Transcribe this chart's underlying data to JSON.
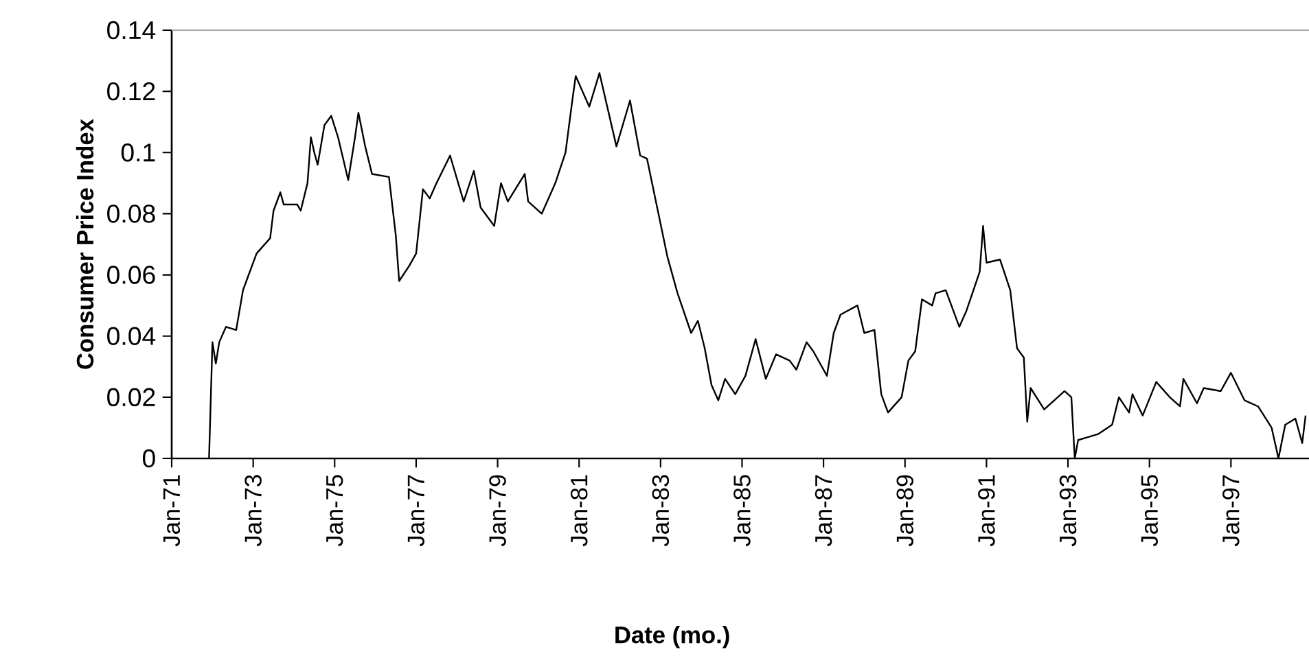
{
  "chart_data": {
    "type": "line",
    "xlabel": "Date (mo.)",
    "ylabel": "Consumer Price Index",
    "x": [
      "1971-12",
      "1972-01",
      "1972-02",
      "1972-03",
      "1972-05",
      "1972-08",
      "1972-10",
      "1972-11",
      "1973-02",
      "1973-06",
      "1973-07",
      "1973-09",
      "1973-10",
      "1974-02",
      "1974-03",
      "1974-05",
      "1974-06",
      "1974-07",
      "1974-08",
      "1974-10",
      "1974-12",
      "1975-02",
      "1975-05",
      "1975-07",
      "1975-08",
      "1975-10",
      "1975-12",
      "1976-05",
      "1976-07",
      "1976-08",
      "1976-11",
      "1977-01",
      "1977-03",
      "1977-05",
      "1977-07",
      "1977-11",
      "1978-03",
      "1978-06",
      "1978-08",
      "1978-12",
      "1979-02",
      "1979-04",
      "1979-09",
      "1979-10",
      "1980-02",
      "1980-06",
      "1980-09",
      "1980-11",
      "1980-12",
      "1981-04",
      "1981-07",
      "1981-12",
      "1982-04",
      "1982-07",
      "1982-09",
      "1982-12",
      "1983-03",
      "1983-06",
      "1983-10",
      "1983-12",
      "1984-02",
      "1984-04",
      "1984-06",
      "1984-08",
      "1984-11",
      "1985-02",
      "1985-05",
      "1985-08",
      "1985-11",
      "1986-03",
      "1986-05",
      "1986-08",
      "1986-10",
      "1987-02",
      "1987-04",
      "1987-06",
      "1987-11",
      "1988-01",
      "1988-04",
      "1988-06",
      "1988-08",
      "1988-12",
      "1989-02",
      "1989-04",
      "1989-06",
      "1989-09",
      "1989-10",
      "1990-01",
      "1990-05",
      "1990-07",
      "1990-11",
      "1990-12",
      "1991-01",
      "1991-05",
      "1991-08",
      "1991-10",
      "1991-12",
      "1992-01",
      "1992-02",
      "1992-06",
      "1992-12",
      "1993-02",
      "1993-03",
      "1993-04",
      "1993-07",
      "1993-10",
      "1994-02",
      "1994-04",
      "1994-07",
      "1994-08",
      "1994-11",
      "1995-03",
      "1995-07",
      "1995-10",
      "1995-11",
      "1996-03",
      "1996-05",
      "1996-10",
      "1997-01",
      "1997-05",
      "1997-09",
      "1998-01",
      "1998-03",
      "1998-05",
      "1998-08",
      "1998-10",
      "1998-11"
    ],
    "series": [
      {
        "color": "#000000",
        "values": [
          0,
          0.038,
          0.031,
          0.038,
          0.043,
          0.042,
          0.055,
          0.058,
          0.067,
          0.072,
          0.081,
          0.087,
          0.083,
          0.083,
          0.081,
          0.09,
          0.105,
          0.1,
          0.096,
          0.109,
          0.112,
          0.105,
          0.091,
          0.105,
          0.113,
          0.102,
          0.093,
          0.092,
          0.073,
          0.058,
          0.063,
          0.067,
          0.088,
          0.085,
          0.09,
          0.099,
          0.084,
          0.094,
          0.082,
          0.076,
          0.09,
          0.084,
          0.093,
          0.084,
          0.08,
          0.09,
          0.1,
          0.117,
          0.125,
          0.115,
          0.126,
          0.102,
          0.117,
          0.099,
          0.098,
          0.082,
          0.066,
          0.054,
          0.041,
          0.045,
          0.036,
          0.024,
          0.019,
          0.026,
          0.021,
          0.027,
          0.039,
          0.026,
          0.034,
          0.032,
          0.029,
          0.038,
          0.035,
          0.027,
          0.041,
          0.047,
          0.05,
          0.041,
          0.042,
          0.021,
          0.015,
          0.02,
          0.032,
          0.035,
          0.052,
          0.05,
          0.054,
          0.055,
          0.043,
          0.048,
          0.061,
          0.076,
          0.064,
          0.065,
          0.055,
          0.036,
          0.033,
          0.012,
          0.023,
          0.016,
          0.022,
          0.02,
          0.0,
          0.006,
          0.007,
          0.008,
          0.011,
          0.02,
          0.015,
          0.021,
          0.014,
          0.025,
          0.02,
          0.017,
          0.026,
          0.018,
          0.023,
          0.022,
          0.028,
          0.019,
          0.017,
          0.01,
          0.0,
          0.011,
          0.013,
          0.005,
          0.014
        ]
      }
    ],
    "xlim": [
      "1971-01",
      "1998-12"
    ],
    "xticks": [
      {
        "value": "1971-01",
        "label": "Jan-71"
      },
      {
        "value": "1973-01",
        "label": "Jan-73"
      },
      {
        "value": "1975-01",
        "label": "Jan-75"
      },
      {
        "value": "1977-01",
        "label": "Jan-77"
      },
      {
        "value": "1979-01",
        "label": "Jan-79"
      },
      {
        "value": "1981-01",
        "label": "Jan-81"
      },
      {
        "value": "1983-01",
        "label": "Jan-83"
      },
      {
        "value": "1985-01",
        "label": "Jan-85"
      },
      {
        "value": "1987-01",
        "label": "Jan-87"
      },
      {
        "value": "1989-01",
        "label": "Jan-89"
      },
      {
        "value": "1991-01",
        "label": "Jan-91"
      },
      {
        "value": "1993-01",
        "label": "Jan-93"
      },
      {
        "value": "1995-01",
        "label": "Jan-95"
      },
      {
        "value": "1997-01",
        "label": "Jan-97"
      }
    ],
    "ylim": [
      0,
      0.14
    ],
    "yticks": [
      0,
      0.02,
      0.04,
      0.06,
      0.08,
      0.1,
      0.12,
      0.14
    ],
    "marker": "none",
    "line_style": "solid"
  }
}
